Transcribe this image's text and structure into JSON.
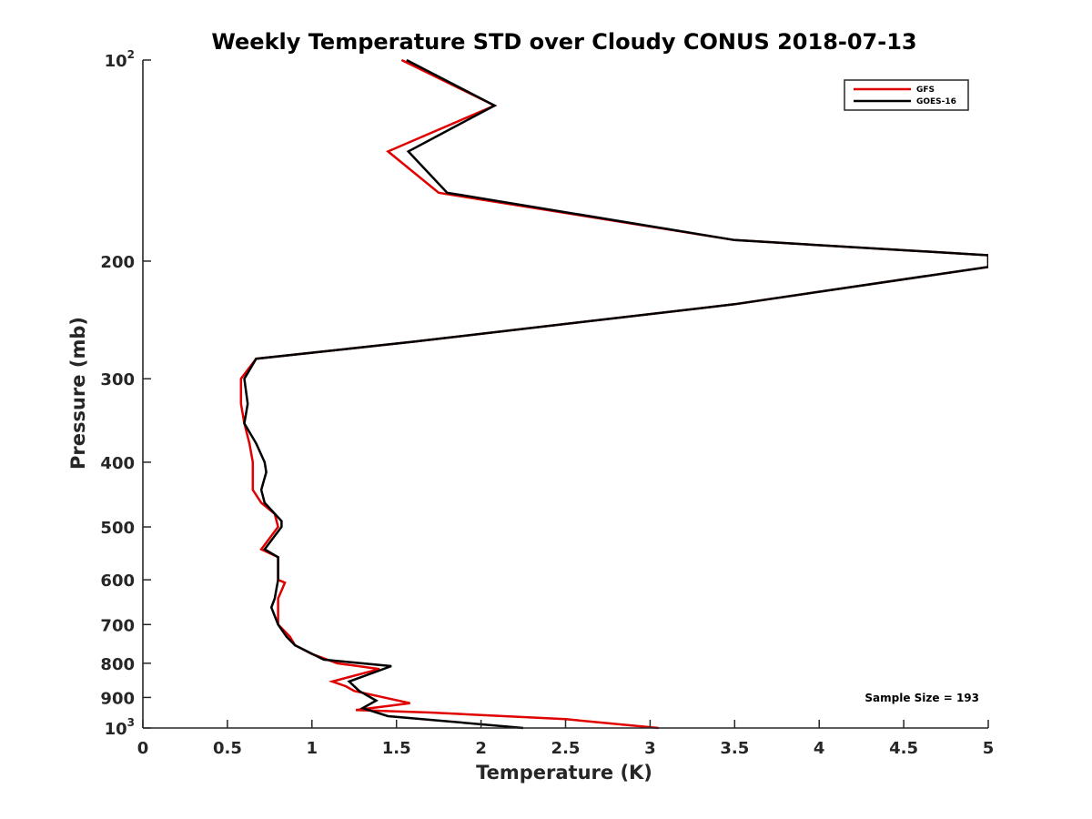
{
  "chart_data": {
    "type": "line",
    "title": "Weekly Temperature STD over Cloudy CONUS 2018-07-13",
    "xlabel": "Temperature (K)",
    "ylabel": "Pressure (mb)",
    "xlim": [
      0,
      5
    ],
    "ylim": [
      100,
      1000
    ],
    "y_scale": "log",
    "y_reversed": true,
    "grid": false,
    "legend_position": "top-right",
    "x_ticks": [
      "0",
      "0.5",
      "1",
      "1.5",
      "2",
      "2.5",
      "3",
      "3.5",
      "4",
      "4.5",
      "5"
    ],
    "y_ticks": [
      {
        "value": 100,
        "base": "10",
        "exp": "2"
      },
      {
        "value": 200,
        "label": "200"
      },
      {
        "value": 300,
        "label": "300"
      },
      {
        "value": 400,
        "label": "400"
      },
      {
        "value": 500,
        "label": "500"
      },
      {
        "value": 600,
        "label": "600"
      },
      {
        "value": 700,
        "label": "700"
      },
      {
        "value": 800,
        "label": "800"
      },
      {
        "value": 900,
        "label": "900"
      },
      {
        "value": 1000,
        "base": "10",
        "exp": "3"
      }
    ],
    "annotation": "Sample Size = 193",
    "series": [
      {
        "name": "GFS",
        "color": "#e00000",
        "points": [
          [
            1.53,
            100
          ],
          [
            2.08,
            117
          ],
          [
            1.45,
            137
          ],
          [
            1.75,
            158
          ],
          [
            3.5,
            186
          ],
          [
            5.0,
            196
          ],
          [
            5.0,
            204
          ],
          [
            3.5,
            232
          ],
          [
            1.6,
            264
          ],
          [
            0.67,
            280
          ],
          [
            0.58,
            300
          ],
          [
            0.58,
            327
          ],
          [
            0.6,
            350
          ],
          [
            0.63,
            375
          ],
          [
            0.65,
            400
          ],
          [
            0.65,
            414
          ],
          [
            0.65,
            440
          ],
          [
            0.7,
            460
          ],
          [
            0.78,
            478
          ],
          [
            0.8,
            500
          ],
          [
            0.7,
            540
          ],
          [
            0.8,
            555
          ],
          [
            0.8,
            600
          ],
          [
            0.84,
            606
          ],
          [
            0.8,
            640
          ],
          [
            0.8,
            700
          ],
          [
            0.87,
            730
          ],
          [
            0.9,
            752
          ],
          [
            1.0,
            775
          ],
          [
            1.15,
            800
          ],
          [
            1.4,
            816
          ],
          [
            1.12,
            852
          ],
          [
            1.2,
            866
          ],
          [
            1.25,
            880
          ],
          [
            1.58,
            918
          ],
          [
            1.26,
            940
          ],
          [
            1.7,
            948
          ],
          [
            2.5,
            970
          ],
          [
            3.05,
            1000
          ]
        ]
      },
      {
        "name": "GOES-16",
        "color": "#000000",
        "points": [
          [
            1.56,
            100
          ],
          [
            2.08,
            117
          ],
          [
            1.57,
            137
          ],
          [
            1.8,
            158
          ],
          [
            3.5,
            186
          ],
          [
            5.0,
            196
          ],
          [
            5.0,
            204
          ],
          [
            3.5,
            232
          ],
          [
            1.6,
            264
          ],
          [
            0.67,
            280
          ],
          [
            0.6,
            300
          ],
          [
            0.62,
            327
          ],
          [
            0.6,
            350
          ],
          [
            0.67,
            375
          ],
          [
            0.72,
            400
          ],
          [
            0.73,
            414
          ],
          [
            0.7,
            440
          ],
          [
            0.72,
            460
          ],
          [
            0.82,
            490
          ],
          [
            0.82,
            500
          ],
          [
            0.72,
            540
          ],
          [
            0.8,
            555
          ],
          [
            0.8,
            600
          ],
          [
            0.78,
            640
          ],
          [
            0.76,
            660
          ],
          [
            0.8,
            700
          ],
          [
            0.85,
            730
          ],
          [
            0.9,
            752
          ],
          [
            1.07,
            790
          ],
          [
            1.47,
            808
          ],
          [
            1.22,
            852
          ],
          [
            1.28,
            880
          ],
          [
            1.38,
            910
          ],
          [
            1.3,
            934
          ],
          [
            1.45,
            960
          ],
          [
            1.8,
            977
          ],
          [
            2.25,
            1000
          ]
        ]
      }
    ]
  }
}
